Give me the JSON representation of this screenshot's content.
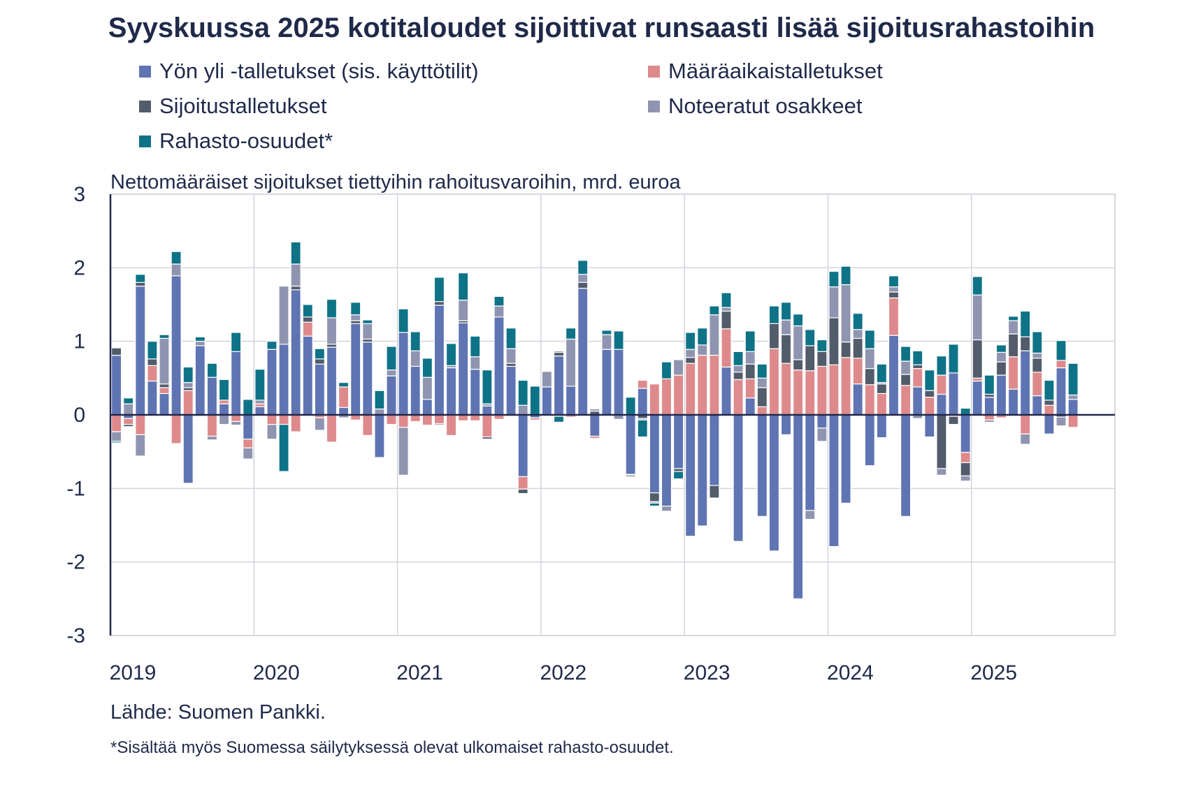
{
  "title": "Syyskuussa 2025 kotitaloudet sijoittivat runsaasti lisää sijoitusrahastoihin",
  "subtitle": "Nettomääräiset sijoitukset tiettyihin rahoitusvaroihin, mrd. euroa",
  "source": "Lähde: Suomen Pankki.",
  "footnote": "*Sisältää myös Suomessa säilytyksessä olevat ulkomaiset rahasto-osuudet.",
  "chart_data": {
    "type": "bar",
    "stacked": true,
    "title": "Syyskuussa 2025 kotitaloudet sijoittivat runsaasti lisää sijoitusrahastoihin",
    "ylabel": "Nettomääräiset sijoitukset tiettyihin rahoitusvaroihin, mrd. euroa",
    "xlabel": "",
    "ylim": [
      -3,
      3
    ],
    "yticks": [
      "3",
      "2",
      "1",
      "0",
      "-1",
      "-2",
      "-3"
    ],
    "ytick_values": [
      3,
      2,
      1,
      0,
      -1,
      -2,
      -3
    ],
    "xticks": [
      "2019",
      "2020",
      "2021",
      "2022",
      "2023",
      "2024",
      "2025"
    ],
    "x_start": "2019-01",
    "x_months_span": 84,
    "grid": true,
    "legend_position": "top",
    "series": [
      {
        "name": "Yön yli -talletukset (sis. käyttötilit)",
        "color": "#5f74b2",
        "values": [
          0.81,
          -0.05,
          1.75,
          0.46,
          0.29,
          1.89,
          -0.93,
          0.94,
          0.51,
          0.15,
          0.86,
          -0.33,
          0.11,
          0.89,
          0.96,
          1.7,
          1.07,
          0.69,
          0.92,
          0.1,
          1.24,
          0.99,
          -0.58,
          0.53,
          1.12,
          0.66,
          0.21,
          1.49,
          0.64,
          1.25,
          0.62,
          0.12,
          1.33,
          0.66,
          -0.84,
          -0.04,
          0.38,
          0.8,
          0.39,
          1.72,
          -0.29,
          0.89,
          0.89,
          -0.81,
          0.36,
          -1.06,
          -1.24,
          -0.73,
          -1.65,
          -1.51,
          -0.96,
          0.65,
          -1.72,
          0.23,
          -1.38,
          -1.85,
          -0.27,
          -2.5,
          -1.3,
          -0.18,
          -1.79,
          -1.2,
          0.42,
          -0.69,
          -0.31,
          1.08,
          -1.38,
          0.38,
          -0.3,
          0.28,
          0.57,
          -0.51,
          0.46,
          0.24,
          0.54,
          0.35,
          0.87,
          0.26,
          -0.26,
          0.64,
          0.21
        ]
      },
      {
        "name": "Määräaikaistalletukset",
        "color": "#de8a8c",
        "values": [
          -0.23,
          -0.08,
          -0.27,
          0.21,
          0.08,
          -0.39,
          0.33,
          -0.02,
          -0.29,
          0.05,
          -0.09,
          -0.12,
          0.04,
          -0.13,
          -0.13,
          -0.23,
          0.19,
          -0.04,
          -0.37,
          0.28,
          -0.07,
          -0.28,
          0,
          -0.13,
          -0.17,
          -0.09,
          -0.14,
          -0.12,
          -0.28,
          -0.08,
          -0.08,
          -0.3,
          -0.06,
          -0.02,
          -0.17,
          -0.03,
          0,
          -0.02,
          -0.03,
          0,
          -0.03,
          0,
          0,
          -0.01,
          0.11,
          0.42,
          0.49,
          0.54,
          0.7,
          0.81,
          0.81,
          0.52,
          0.48,
          0.26,
          0.11,
          0.9,
          0.7,
          0.61,
          0.6,
          0.66,
          0.68,
          0.78,
          0.35,
          0.41,
          0.29,
          0.51,
          0.4,
          0.25,
          0.24,
          0.26,
          -0.02,
          -0.14,
          0.04,
          -0.07,
          -0.04,
          0.44,
          -0.26,
          0.32,
          0.13,
          0.1,
          -0.17
        ]
      },
      {
        "name": "Sijoitustalletukset",
        "color": "#525c6b",
        "values": [
          0.1,
          -0.03,
          0.05,
          0.09,
          0.05,
          0,
          0.04,
          0,
          0,
          0,
          0,
          0,
          0,
          0,
          0,
          0.05,
          0.07,
          0.07,
          0.04,
          0,
          0.04,
          0.04,
          0,
          0,
          0,
          0,
          0,
          0.05,
          0,
          0.03,
          0,
          -0.03,
          0,
          0.04,
          -0.06,
          0,
          0,
          0.05,
          0,
          0.08,
          0.05,
          0,
          0,
          -0.02,
          -0.05,
          -0.12,
          0,
          -0.04,
          0.08,
          0,
          -0.17,
          0.24,
          0.1,
          0.2,
          0.26,
          0.34,
          0.39,
          0.14,
          0.34,
          0.2,
          0.64,
          0.21,
          0.27,
          0.22,
          0.13,
          0.08,
          0.15,
          0.05,
          0.09,
          -0.73,
          -0.11,
          -0.18,
          0.52,
          0.04,
          0.18,
          0.31,
          0.19,
          0.19,
          0.07,
          -0.03,
          0
        ]
      },
      {
        "name": "Noteeratut osakkeet",
        "color": "#8f95b0",
        "values": [
          -0.13,
          0.15,
          -0.29,
          0,
          0.62,
          0.16,
          0.07,
          0.06,
          -0.05,
          -0.13,
          -0.05,
          -0.15,
          0.05,
          -0.2,
          0.79,
          0.3,
          0,
          -0.17,
          0.36,
          -0.04,
          0.08,
          0.21,
          0.08,
          0.08,
          -0.65,
          0.21,
          0.3,
          -0.02,
          0.03,
          0.28,
          0.17,
          0.03,
          0.15,
          0.2,
          0.13,
          0,
          0.21,
          0.02,
          0.64,
          0.11,
          0.03,
          0.2,
          -0.06,
          0,
          -0.02,
          -0.02,
          -0.07,
          0.21,
          0.11,
          0.14,
          0.55,
          0.05,
          0.09,
          0.17,
          0.13,
          0,
          0.2,
          0.46,
          -0.12,
          -0.18,
          0.42,
          0.78,
          0.12,
          0.27,
          0.02,
          0.07,
          0.18,
          -0.05,
          0,
          -0.09,
          0,
          -0.07,
          0.61,
          -0.03,
          0.13,
          0.18,
          -0.14,
          0.07,
          0,
          -0.12,
          0.06
        ]
      },
      {
        "name": "Rahasto-osuudet*",
        "color": "#0e7387",
        "values": [
          -0.02,
          0.08,
          0.11,
          0.24,
          0.05,
          0.17,
          0.21,
          0.06,
          0.19,
          0.28,
          0.26,
          0.21,
          0.42,
          0.11,
          -0.64,
          0.3,
          0.17,
          0.14,
          0.25,
          0.06,
          0.17,
          0.05,
          0.25,
          0.32,
          0.32,
          0.26,
          0.26,
          0.33,
          0.3,
          0.37,
          0.28,
          0.46,
          0.13,
          0.28,
          0.34,
          0.39,
          0,
          -0.08,
          0.15,
          0.19,
          0,
          0.06,
          0.25,
          0.24,
          -0.23,
          -0.04,
          0.23,
          -0.1,
          0.23,
          0.23,
          0.12,
          0.2,
          0.19,
          0.28,
          0.19,
          0.24,
          0.24,
          0.16,
          0.22,
          0.16,
          0.21,
          0.25,
          0.22,
          0.25,
          0.25,
          0.15,
          0.2,
          0.19,
          0.28,
          0.26,
          0.39,
          0.09,
          0.25,
          0.26,
          0.1,
          0.06,
          0.35,
          0.29,
          0.27,
          0.27,
          0.43
        ]
      }
    ]
  }
}
